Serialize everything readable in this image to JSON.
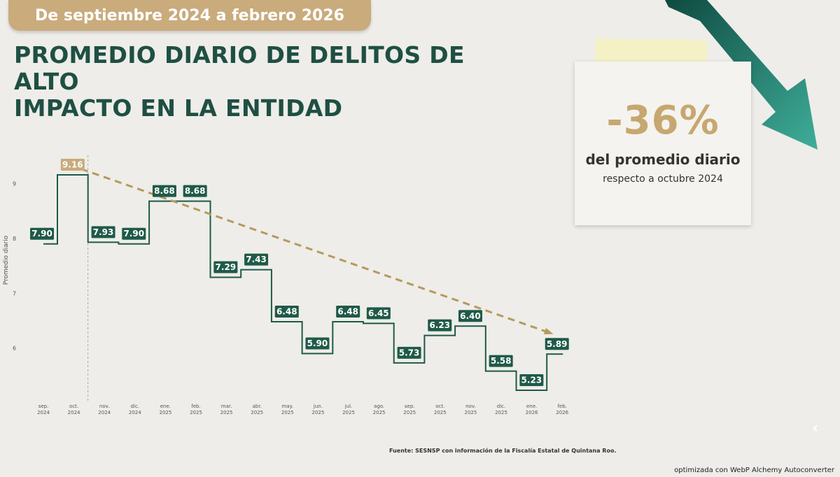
{
  "banner": {
    "text": "De septiembre 2024 a febrero 2026"
  },
  "title": {
    "line1": "PROMEDIO DIARIO DE DELITOS DE ALTO",
    "line2": "IMPACTO EN LA ENTIDAD"
  },
  "note": {
    "big": "-36%",
    "line1": "del promedio diario",
    "line2": "respecto a octubre 2024"
  },
  "source": "Fuente: SESNSP con información de la Fiscalía Estatal de Quintana Roo.",
  "footer": "optimizada con WebP Alchemy Autoconverter",
  "chevron": "‹",
  "colors": {
    "step": "#1f5a48",
    "label_bg": "#1f5a48",
    "highlight_bg": "#c9ab7c",
    "trend": "#b59a5c",
    "title": "#1f4f43",
    "arrow_dark": "#0f4a40",
    "arrow_light": "#3fae9a"
  },
  "chart_data": {
    "type": "step-line",
    "ylabel": "Promedio diario",
    "ylim": [
      5,
      9.6
    ],
    "y_ticks": [
      "6",
      "7",
      "8",
      "9"
    ],
    "categories": [
      [
        "sep.",
        "2024"
      ],
      [
        "oct.",
        "2024"
      ],
      [
        "nov.",
        "2024"
      ],
      [
        "dic.",
        "2024"
      ],
      [
        "ene.",
        "2025"
      ],
      [
        "feb.",
        "2025"
      ],
      [
        "mar.",
        "2025"
      ],
      [
        "abr.",
        "2025"
      ],
      [
        "may.",
        "2025"
      ],
      [
        "jun.",
        "2025"
      ],
      [
        "jul.",
        "2025"
      ],
      [
        "ago.",
        "2025"
      ],
      [
        "sep.",
        "2025"
      ],
      [
        "oct.",
        "2025"
      ],
      [
        "nov.",
        "2025"
      ],
      [
        "dic.",
        "2025"
      ],
      [
        "ene.",
        "2026"
      ],
      [
        "feb.",
        "2026"
      ]
    ],
    "values": [
      7.9,
      9.16,
      7.93,
      7.9,
      8.68,
      8.68,
      7.29,
      7.43,
      6.48,
      5.9,
      6.48,
      6.45,
      5.73,
      6.23,
      6.4,
      5.58,
      5.23,
      5.89
    ],
    "value_labels": [
      "7.90",
      "9.16",
      "7.93",
      "7.90",
      "8.68",
      "8.68",
      "7.29",
      "7.43",
      "6.48",
      "5.90",
      "6.48",
      "6.45",
      "5.73",
      "6.23",
      "6.40",
      "5.58",
      "5.23",
      "5.89"
    ],
    "highlight_index": 1,
    "trend": {
      "from_index": 1,
      "to_index": 17
    }
  }
}
